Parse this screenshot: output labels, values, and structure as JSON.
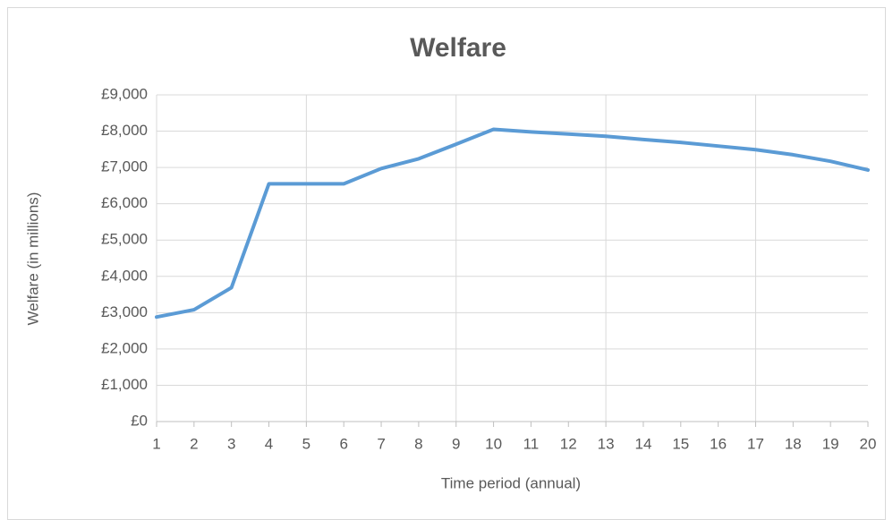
{
  "chart_data": {
    "type": "line",
    "title": "Welfare",
    "x_label": "Time period (annual)",
    "y_label": "Welfare (in millions)",
    "x": [
      1,
      2,
      3,
      4,
      5,
      6,
      7,
      8,
      9,
      10,
      11,
      12,
      13,
      14,
      15,
      16,
      17,
      18,
      19,
      20
    ],
    "series": [
      {
        "name": "Welfare",
        "color": "#5b9bd5",
        "values": [
          2880,
          3080,
          3690,
          6550,
          6550,
          6550,
          6970,
          7240,
          7640,
          8050,
          7980,
          7920,
          7860,
          7770,
          7690,
          7590,
          7490,
          7350,
          7170,
          6930
        ]
      }
    ],
    "xlim": [
      1,
      20
    ],
    "xticks": [
      1,
      2,
      3,
      4,
      5,
      6,
      7,
      8,
      9,
      10,
      11,
      12,
      13,
      14,
      15,
      16,
      17,
      18,
      19,
      20
    ],
    "xgridticks": [
      1,
      5,
      9,
      13,
      17
    ],
    "ylim": [
      0,
      9000
    ],
    "yticks": [
      {
        "value": 0,
        "label": "£0"
      },
      {
        "value": 1000,
        "label": "£1,000"
      },
      {
        "value": 2000,
        "label": "£2,000"
      },
      {
        "value": 3000,
        "label": "£3,000"
      },
      {
        "value": 4000,
        "label": "£4,000"
      },
      {
        "value": 5000,
        "label": "£5,000"
      },
      {
        "value": 6000,
        "label": "£6,000"
      },
      {
        "value": 7000,
        "label": "£7,000"
      },
      {
        "value": 8000,
        "label": "£8,000"
      },
      {
        "value": 9000,
        "label": "£9,000"
      }
    ],
    "grid": true
  }
}
